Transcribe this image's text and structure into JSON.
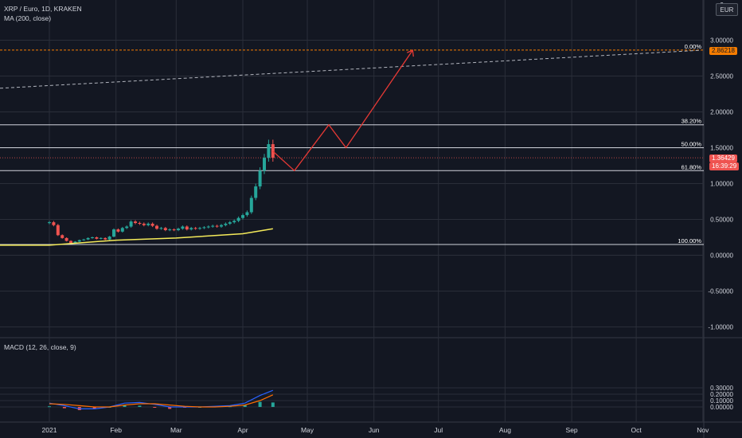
{
  "header": {
    "symbol_line": "XRP / Euro, 1D, KRAKEN",
    "ma_line": "MA (200, close)",
    "macd_line": "MACD (12, 26, close, 9)",
    "currency_button": "EUR"
  },
  "colors": {
    "background": "#131722",
    "grid": "#2a2e39",
    "up": "#26a69a",
    "down": "#ef5350",
    "ma": "#f5eb5a",
    "fib": "#d1d4dc",
    "projection": "#e53935",
    "price_tag": "#ef5350",
    "target_tag": "#f57c00",
    "macd_line": "#2962ff",
    "signal_line": "#ff6d00"
  },
  "price_tags": {
    "current_price": "1.36429",
    "countdown": "16:39:29",
    "target_price": "2.86218"
  },
  "chart_data": [
    {
      "type": "candlestick",
      "title": "XRP / Euro, 1D, KRAKEN",
      "x": [
        "2021-01-01",
        "2021-01-03",
        "2021-01-05",
        "2021-01-07",
        "2021-01-09",
        "2021-01-11",
        "2021-01-13",
        "2021-01-15",
        "2021-01-17",
        "2021-01-19",
        "2021-01-21",
        "2021-01-23",
        "2021-01-25",
        "2021-01-27",
        "2021-01-29",
        "2021-01-31",
        "2021-02-02",
        "2021-02-04",
        "2021-02-06",
        "2021-02-08",
        "2021-02-10",
        "2021-02-12",
        "2021-02-14",
        "2021-02-16",
        "2021-02-18",
        "2021-02-20",
        "2021-02-22",
        "2021-02-24",
        "2021-02-26",
        "2021-02-28",
        "2021-03-02",
        "2021-03-04",
        "2021-03-06",
        "2021-03-08",
        "2021-03-10",
        "2021-03-12",
        "2021-03-14",
        "2021-03-16",
        "2021-03-18",
        "2021-03-20",
        "2021-03-22",
        "2021-03-24",
        "2021-03-26",
        "2021-03-28",
        "2021-03-30",
        "2021-04-01",
        "2021-04-03",
        "2021-04-05",
        "2021-04-07",
        "2021-04-09",
        "2021-04-11",
        "2021-04-13",
        "2021-04-15"
      ],
      "close": [
        0.46,
        0.42,
        0.28,
        0.24,
        0.2,
        0.17,
        0.19,
        0.21,
        0.22,
        0.24,
        0.25,
        0.23,
        0.24,
        0.22,
        0.26,
        0.36,
        0.33,
        0.38,
        0.4,
        0.47,
        0.45,
        0.44,
        0.42,
        0.44,
        0.41,
        0.37,
        0.38,
        0.35,
        0.36,
        0.35,
        0.37,
        0.4,
        0.36,
        0.38,
        0.37,
        0.38,
        0.39,
        0.4,
        0.41,
        0.4,
        0.42,
        0.44,
        0.46,
        0.48,
        0.52,
        0.56,
        0.6,
        0.8,
        0.96,
        1.18,
        1.36,
        1.55,
        1.36
      ],
      "ylim": [
        -1.0,
        3.1
      ],
      "yticks": [
        "3.00000",
        "2.50000",
        "2.00000",
        "1.50000",
        "1.00000",
        "0.50000",
        "0.00000",
        "-0.50000",
        "-1.00000"
      ],
      "yaxis_top_partial": "3.",
      "xticks": [
        "2021",
        "Feb",
        "Mar",
        "Apr",
        "May",
        "Jun",
        "Jul",
        "Aug",
        "Sep",
        "Oct",
        "Nov"
      ],
      "fib_levels": [
        {
          "label": "0.00%",
          "value": 2.862
        },
        {
          "label": "38.20%",
          "value": 1.82
        },
        {
          "label": "50.00%",
          "value": 1.5
        },
        {
          "label": "61.80%",
          "value": 1.18
        },
        {
          "label": "100.00%",
          "value": 0.15
        }
      ],
      "ma_200": {
        "x": [
          "2021-01-01",
          "2021-02-01",
          "2021-03-01",
          "2021-04-01",
          "2021-04-15"
        ],
        "y": [
          0.14,
          0.21,
          0.24,
          0.3,
          0.37
        ]
      },
      "projection_path": {
        "x": [
          "2021-04-15",
          "2021-04-25",
          "2021-05-11",
          "2021-05-19",
          "2021-06-19"
        ],
        "y": [
          1.45,
          1.18,
          1.82,
          1.5,
          2.86
        ]
      },
      "trendline": {
        "x": [
          "2020-12-31",
          "2021-10-31"
        ],
        "y": [
          2.33,
          2.86
        ]
      }
    },
    {
      "type": "line",
      "title": "MACD (12, 26, close, 9)",
      "ylim": [
        -0.05,
        0.31
      ],
      "yticks": [
        "0.30000",
        "0.20000",
        "0.10000",
        "0.00000"
      ],
      "x": [
        "2021-01-01",
        "2021-01-08",
        "2021-01-15",
        "2021-01-22",
        "2021-01-29",
        "2021-02-05",
        "2021-02-12",
        "2021-02-19",
        "2021-02-26",
        "2021-03-05",
        "2021-03-12",
        "2021-03-19",
        "2021-03-26",
        "2021-04-02",
        "2021-04-09",
        "2021-04-15"
      ],
      "series": [
        {
          "name": "MACD",
          "values": [
            0.06,
            0.02,
            -0.03,
            -0.03,
            0.0,
            0.06,
            0.07,
            0.04,
            0.0,
            0.0,
            0.0,
            0.01,
            0.02,
            0.06,
            0.18,
            0.26
          ]
        },
        {
          "name": "Signal",
          "values": [
            0.05,
            0.04,
            0.02,
            0.0,
            0.0,
            0.03,
            0.05,
            0.05,
            0.03,
            0.01,
            0.0,
            0.0,
            0.01,
            0.03,
            0.1,
            0.19
          ]
        },
        {
          "name": "Histogram",
          "values": [
            0.01,
            -0.02,
            -0.05,
            -0.03,
            0.0,
            0.03,
            0.02,
            -0.01,
            -0.03,
            -0.01,
            0.0,
            0.01,
            0.01,
            0.03,
            0.08,
            0.07
          ]
        }
      ]
    }
  ]
}
